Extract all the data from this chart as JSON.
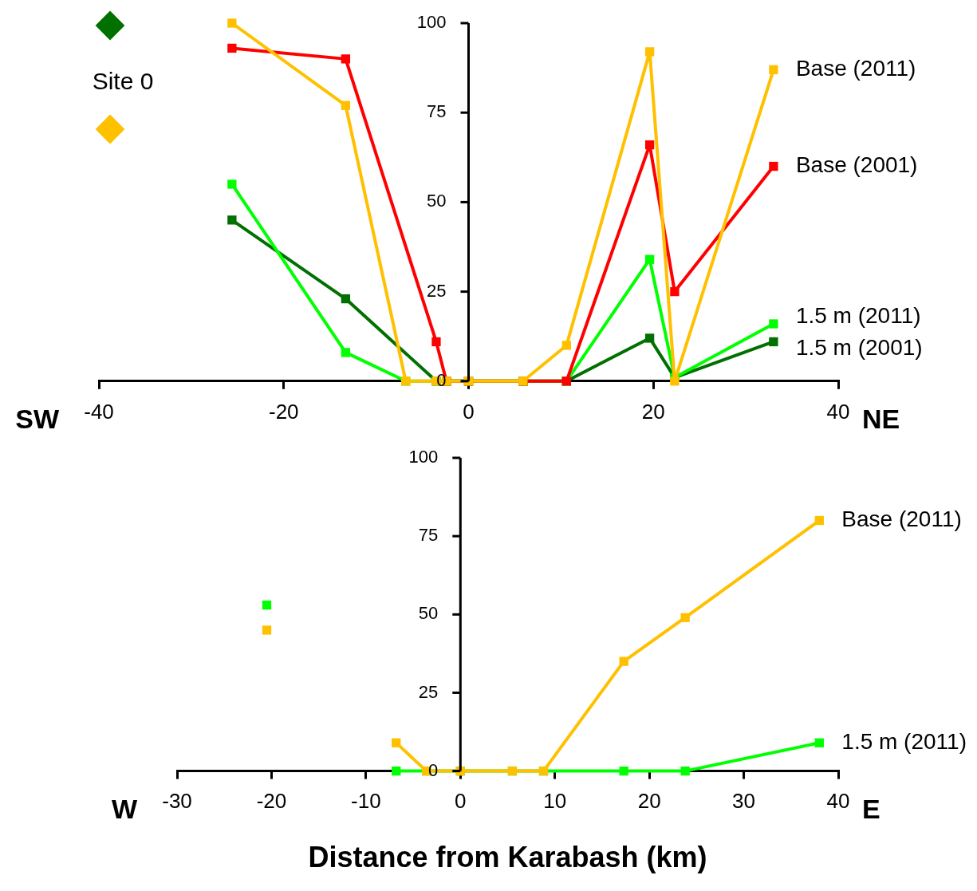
{
  "chart_data": [
    {
      "type": "line",
      "marker": "square",
      "xlim": [
        -40,
        40
      ],
      "xticks": [
        -40,
        -20,
        0,
        20,
        40
      ],
      "ylim": [
        0,
        100
      ],
      "yticks": [
        0,
        25,
        50,
        75,
        100
      ],
      "annotations": [
        "SW",
        "NE",
        "Site 0"
      ],
      "series": [
        {
          "name": "Base (2011)",
          "color": "#ffc000",
          "x": [
            -25.6,
            -13.3,
            -6.8,
            -3.5,
            -2.4,
            0,
            5.9,
            10.6,
            19.6,
            22.3,
            33
          ],
          "values": [
            100,
            77,
            0,
            0,
            0,
            0,
            0,
            10,
            92,
            0,
            87
          ]
        },
        {
          "name": "Base (2001)",
          "color": "#ff0000",
          "x": [
            -25.6,
            -13.3,
            -3.5,
            -2.4,
            0,
            5.9,
            10.6,
            19.6,
            22.3,
            33
          ],
          "values": [
            93,
            90,
            11,
            0,
            0,
            0,
            0,
            66,
            25,
            60
          ]
        },
        {
          "name": "1.5 m (2011)",
          "color": "#00ff00",
          "x": [
            -25.6,
            -13.3,
            -6.8,
            -3.5,
            -2.4,
            0,
            5.9,
            10.6,
            19.6,
            22.3,
            33
          ],
          "values": [
            55,
            8,
            0,
            0,
            0,
            0,
            0,
            0,
            34,
            1,
            16
          ]
        },
        {
          "name": "1.5 m (2001)",
          "color": "#007000",
          "x": [
            -25.6,
            -13.3,
            -3.5,
            -2.4,
            0,
            5.9,
            10.6,
            19.6,
            22.3,
            33
          ],
          "values": [
            45,
            23,
            0,
            0,
            0,
            0,
            0,
            12,
            1,
            11
          ]
        }
      ]
    },
    {
      "type": "line",
      "marker": "square",
      "xlabel": "Distance from Karabash (km)",
      "xlim": [
        -30,
        40
      ],
      "xticks": [
        -30,
        -20,
        -10,
        0,
        10,
        20,
        30,
        40
      ],
      "ylim": [
        0,
        100
      ],
      "yticks": [
        0,
        25,
        50,
        75,
        100
      ],
      "annotations": [
        "W",
        "E"
      ],
      "series": [
        {
          "type": "scatter",
          "color": "#00ff00",
          "x": [
            -20.5
          ],
          "values": [
            53
          ]
        },
        {
          "type": "scatter",
          "color": "#ffc000",
          "x": [
            -20.5
          ],
          "values": [
            45
          ]
        },
        {
          "name": "Base (2011)",
          "color": "#ffc000",
          "x": [
            -6.8,
            -3.6,
            0,
            5.5,
            8.8,
            17.3,
            23.8,
            38
          ],
          "values": [
            9,
            0,
            0,
            0,
            0,
            35,
            49,
            80
          ]
        },
        {
          "name": "1.5 m (2011)",
          "color": "#00ff00",
          "x": [
            -6.8,
            -3.6,
            0,
            5.5,
            8.8,
            17.3,
            23.8,
            38
          ],
          "values": [
            0,
            0,
            0,
            0,
            0,
            0,
            0,
            9
          ]
        }
      ]
    }
  ]
}
